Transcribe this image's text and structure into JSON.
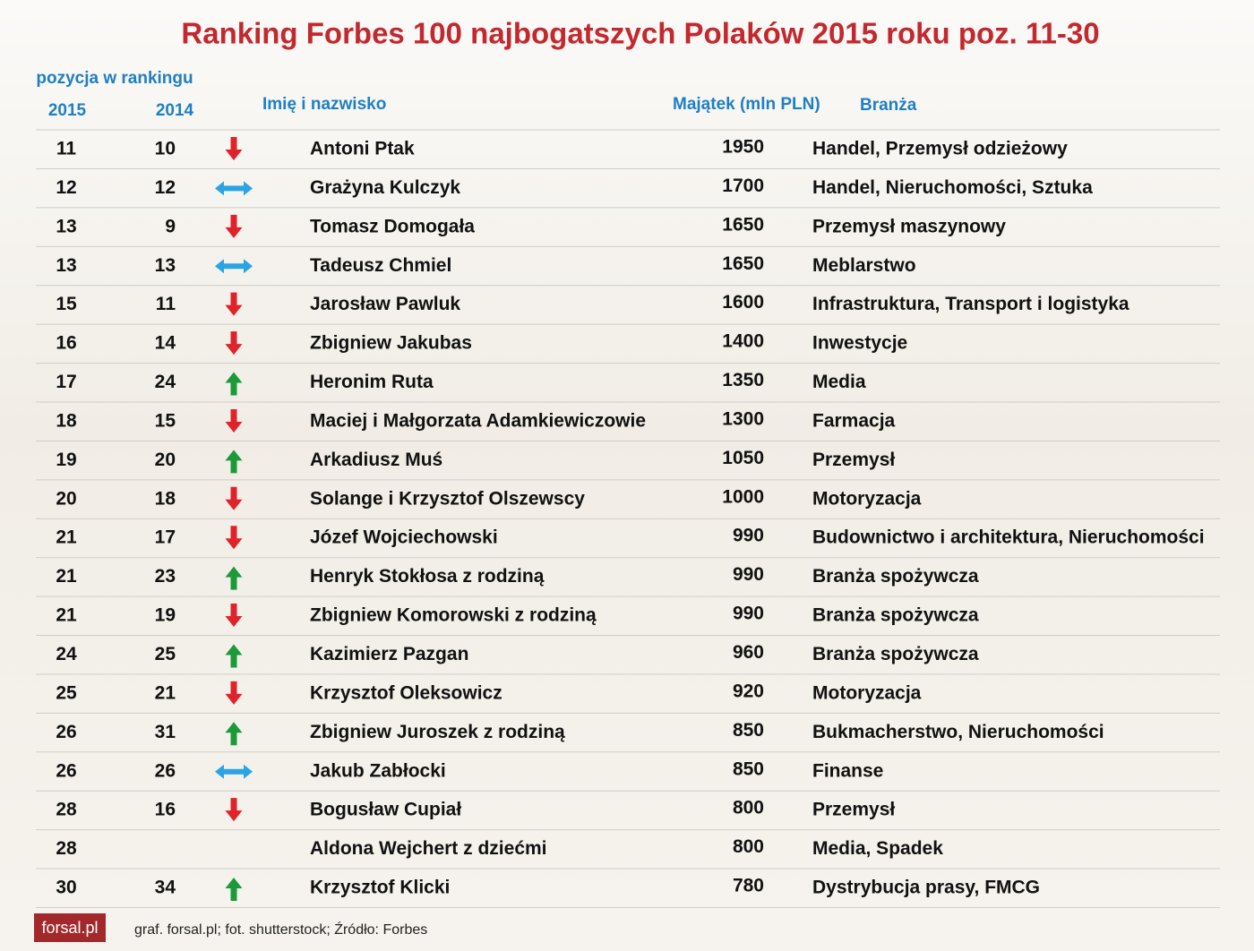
{
  "title": "Ranking Forbes 100 najbogatszych Polaków 2015 roku poz. 11-30",
  "header": {
    "position": "pozycja w rankingu",
    "year_a": "2015",
    "year_b": "2014",
    "name": "Imię i nazwisko",
    "wealth": "Majątek (mln PLN)",
    "industry": "Branża"
  },
  "table": {
    "rows": [
      [
        11,
        10,
        "down",
        "Antoni Ptak",
        1950,
        "Handel, Przemysł odzieżowy"
      ],
      [
        12,
        12,
        "same",
        "Grażyna Kulczyk",
        1700,
        "Handel, Nieruchomości, Sztuka"
      ],
      [
        13,
        9,
        "down",
        "Tomasz Domogała",
        1650,
        "Przemysł maszynowy"
      ],
      [
        13,
        13,
        "same",
        "Tadeusz Chmiel",
        1650,
        "Meblarstwo"
      ],
      [
        15,
        11,
        "down",
        "Jarosław Pawluk",
        1600,
        "Infrastruktura, Transport i logistyka"
      ],
      [
        16,
        14,
        "down",
        "Zbigniew Jakubas",
        1400,
        "Inwestycje"
      ],
      [
        17,
        24,
        "up",
        "Heronim Ruta",
        1350,
        "Media"
      ],
      [
        18,
        15,
        "down",
        "Maciej i Małgorzata Adamkiewiczowie",
        1300,
        "Farmacja"
      ],
      [
        19,
        20,
        "up",
        "Arkadiusz Muś",
        1050,
        "Przemysł"
      ],
      [
        20,
        18,
        "down",
        "Solange i Krzysztof Olszewscy",
        1000,
        "Motoryzacja"
      ],
      [
        21,
        17,
        "down",
        "Józef Wojciechowski",
        990,
        "Budownictwo i architektura, Nieruchomości"
      ],
      [
        21,
        23,
        "up",
        "Henryk Stokłosa z rodziną",
        990,
        "Branża spożywcza"
      ],
      [
        21,
        19,
        "down",
        "Zbigniew Komorowski z rodziną",
        990,
        "Branża spożywcza"
      ],
      [
        24,
        25,
        "up",
        "Kazimierz Pazgan",
        960,
        "Branża spożywcza"
      ],
      [
        25,
        21,
        "down",
        "Krzysztof Oleksowicz",
        920,
        "Motoryzacja"
      ],
      [
        26,
        31,
        "up",
        "Zbigniew Juroszek z rodziną",
        850,
        "Bukmacherstwo, Nieruchomości"
      ],
      [
        26,
        26,
        "same",
        "Jakub Zabłocki",
        850,
        "Finanse"
      ],
      [
        28,
        16,
        "down",
        "Bogusław Cupiał",
        800,
        "Przemysł"
      ],
      [
        28,
        null,
        null,
        "Aldona Wejchert z dziećmi",
        800,
        "Media, Spadek"
      ],
      [
        30,
        34,
        "up",
        "Krzysztof Klicki",
        780,
        "Dystrybucja prasy, FMCG"
      ]
    ]
  },
  "footer": {
    "logo": "forsal.pl",
    "credits": "graf. forsal.pl;  fot. shutterstock;  Źródło: Forbes"
  }
}
